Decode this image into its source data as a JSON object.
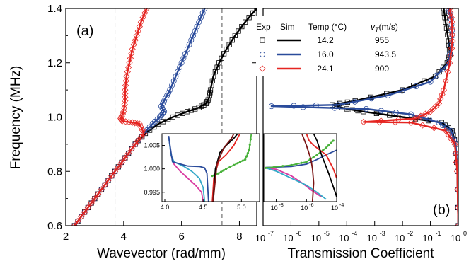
{
  "chart_data": [
    {
      "panel": "a",
      "type": "line",
      "panel_label": "(a)",
      "xlabel": "Wavevector (rad/mm)",
      "ylabel": "Frequency (MHz)",
      "xlim": [
        2,
        8.6
      ],
      "ylim": [
        0.6,
        1.4
      ],
      "xticks": [
        "2",
        "4",
        "6",
        "8"
      ],
      "yticks": [
        "0.6",
        "0.8",
        "1.0",
        "1.2",
        "1.4"
      ],
      "grid": false,
      "reference_lines_x": [
        3.7,
        7.4
      ],
      "series": [
        {
          "temp": "14.2",
          "color": "#000000",
          "marker": "square",
          "points": [
            [
              2.3,
              0.6
            ],
            [
              2.65,
              0.65
            ],
            [
              3.0,
              0.7
            ],
            [
              3.35,
              0.75
            ],
            [
              3.7,
              0.8
            ],
            [
              4.05,
              0.85
            ],
            [
              4.4,
              0.9
            ],
            [
              4.75,
              0.94
            ],
            [
              5.2,
              0.975
            ],
            [
              5.7,
              1.0
            ],
            [
              6.2,
              1.02
            ],
            [
              6.6,
              1.035
            ],
            [
              6.85,
              1.05
            ],
            [
              6.95,
              1.07
            ],
            [
              7.0,
              1.1
            ],
            [
              7.1,
              1.15
            ],
            [
              7.3,
              1.2
            ],
            [
              7.55,
              1.25
            ],
            [
              7.85,
              1.3
            ],
            [
              8.2,
              1.35
            ],
            [
              8.6,
              1.4
            ]
          ]
        },
        {
          "temp": "16.0",
          "color": "#2a4b9b",
          "marker": "circle",
          "points": [
            [
              2.3,
              0.6
            ],
            [
              2.65,
              0.65
            ],
            [
              3.0,
              0.7
            ],
            [
              3.35,
              0.75
            ],
            [
              3.7,
              0.8
            ],
            [
              4.05,
              0.85
            ],
            [
              4.4,
              0.9
            ],
            [
              4.7,
              0.94
            ],
            [
              5.0,
              0.975
            ],
            [
              5.25,
              1.0
            ],
            [
              5.4,
              1.02
            ],
            [
              5.3,
              1.04
            ],
            [
              5.45,
              1.07
            ],
            [
              5.6,
              1.1
            ],
            [
              5.8,
              1.15
            ],
            [
              6.0,
              1.2
            ],
            [
              6.2,
              1.25
            ],
            [
              6.4,
              1.3
            ],
            [
              6.6,
              1.35
            ],
            [
              6.8,
              1.4
            ]
          ]
        },
        {
          "temp": "24.1",
          "color": "#e52521",
          "marker": "diamond",
          "points": [
            [
              2.3,
              0.6
            ],
            [
              2.65,
              0.65
            ],
            [
              3.0,
              0.7
            ],
            [
              3.35,
              0.75
            ],
            [
              3.7,
              0.8
            ],
            [
              4.05,
              0.85
            ],
            [
              4.4,
              0.9
            ],
            [
              4.7,
              0.94
            ],
            [
              4.55,
              0.975
            ],
            [
              4.3,
              0.98
            ],
            [
              3.95,
              0.985
            ],
            [
              3.9,
              0.995
            ],
            [
              4.0,
              1.02
            ],
            [
              4.05,
              1.06
            ],
            [
              4.05,
              1.1
            ],
            [
              4.1,
              1.15
            ],
            [
              4.2,
              1.2
            ],
            [
              4.3,
              1.25
            ],
            [
              4.45,
              1.3
            ],
            [
              4.6,
              1.35
            ],
            [
              4.8,
              1.4
            ]
          ]
        }
      ],
      "inset": {
        "xlim": [
          4.0,
          5.2
        ],
        "ylim": [
          0.993,
          1.0075
        ],
        "xticks": [
          "4.0",
          "4.5",
          "5.0"
        ],
        "yticks": [
          "0.995",
          "1.000",
          "1.005"
        ],
        "series": [
          {
            "color": "#d93aa0",
            "points": [
              [
                4.05,
                1.007
              ],
              [
                4.08,
                1.003
              ],
              [
                4.12,
                1.001
              ],
              [
                4.2,
                0.9995
              ],
              [
                4.3,
                0.998
              ],
              [
                4.4,
                0.9965
              ],
              [
                4.48,
                0.995
              ],
              [
                4.5,
                0.993
              ]
            ]
          },
          {
            "color": "#34a8c8",
            "points": [
              [
                4.05,
                1.007
              ],
              [
                4.08,
                1.003
              ],
              [
                4.12,
                1.0015
              ],
              [
                4.25,
                1.0005
              ],
              [
                4.35,
                0.9995
              ],
              [
                4.45,
                0.998
              ],
              [
                4.5,
                0.996
              ],
              [
                4.52,
                0.993
              ]
            ]
          },
          {
            "color": "#2a4b9b",
            "points": [
              [
                4.05,
                1.007
              ],
              [
                4.1,
                1.0015
              ],
              [
                4.3,
                1.0006
              ],
              [
                4.45,
                1.0005
              ],
              [
                4.52,
                1.0002
              ],
              [
                4.55,
                0.999
              ],
              [
                4.57,
                0.993
              ]
            ]
          },
          {
            "color": "#e52521",
            "points": [
              [
                4.62,
                0.993
              ],
              [
                4.64,
                0.998
              ],
              [
                4.7,
                1.0015
              ],
              [
                4.8,
                1.003
              ],
              [
                4.9,
                1.005
              ],
              [
                4.98,
                1.0075
              ]
            ]
          },
          {
            "color": "#4ab23c",
            "points": [
              [
                4.62,
                0.9985
              ],
              [
                4.7,
                0.999
              ],
              [
                4.8,
                1.0
              ],
              [
                4.95,
                1.0012
              ],
              [
                5.05,
                1.002
              ],
              [
                5.1,
                1.004
              ],
              [
                5.13,
                1.0075
              ]
            ]
          },
          {
            "color": "#000000",
            "points": [
              [
                4.63,
                0.993
              ],
              [
                4.66,
                1.0
              ],
              [
                4.72,
                1.0035
              ],
              [
                4.8,
                1.005
              ],
              [
                4.9,
                1.0065
              ],
              [
                4.95,
                1.0075
              ]
            ]
          },
          {
            "color": "#7b1515",
            "points": [
              [
                4.63,
                0.993
              ],
              [
                4.68,
                1.001
              ],
              [
                4.77,
                1.0045
              ],
              [
                4.87,
                1.0065
              ],
              [
                4.9,
                1.0075
              ]
            ]
          }
        ]
      }
    },
    {
      "panel": "b",
      "type": "line",
      "panel_label": "(b)",
      "xlabel": "Transmission Coefficient",
      "xscale": "log",
      "xlim": [
        1e-07,
        1
      ],
      "ylim": [
        0.6,
        1.4
      ],
      "xticks": [
        {
          "base": "10",
          "exp": "-7"
        },
        {
          "base": "10",
          "exp": "-6"
        },
        {
          "base": "10",
          "exp": "-5"
        },
        {
          "base": "10",
          "exp": "-4"
        },
        {
          "base": "10",
          "exp": "-3"
        },
        {
          "base": "10",
          "exp": "-2"
        },
        {
          "base": "10",
          "exp": "-1"
        },
        {
          "base": "10",
          "exp": "0"
        }
      ],
      "series": [
        {
          "temp": "14.2",
          "color": "#000000",
          "marker": "square",
          "points": [
            [
              1,
              0.6
            ],
            [
              0.92,
              0.8
            ],
            [
              0.8,
              0.9
            ],
            [
              0.6,
              0.95
            ],
            [
              0.25,
              0.98
            ],
            [
              0.01,
              1.0
            ],
            [
              0.0004,
              1.02
            ],
            [
              0.0001,
              1.03
            ],
            [
              3e-05,
              1.045
            ],
            [
              0.0002,
              1.06
            ],
            [
              0.01,
              1.1
            ],
            [
              0.15,
              1.15
            ],
            [
              0.4,
              1.2
            ],
            [
              0.5,
              1.23
            ],
            [
              0.45,
              1.28
            ],
            [
              0.35,
              1.35
            ],
            [
              0.3,
              1.4
            ]
          ]
        },
        {
          "temp": "16.0",
          "color": "#2a4b9b",
          "marker": "circle",
          "points": [
            [
              1,
              0.6
            ],
            [
              0.93,
              0.8
            ],
            [
              0.8,
              0.9
            ],
            [
              0.55,
              0.95
            ],
            [
              0.2,
              0.98
            ],
            [
              0.02,
              1.01
            ],
            [
              0.0005,
              1.03
            ],
            [
              2e-07,
              1.04
            ],
            [
              5e-05,
              1.045
            ],
            [
              0.003,
              1.08
            ],
            [
              0.1,
              1.13
            ],
            [
              0.45,
              1.2
            ],
            [
              0.62,
              1.3
            ],
            [
              0.55,
              1.36
            ],
            [
              0.45,
              1.4
            ]
          ]
        },
        {
          "temp": "24.1",
          "color": "#e52521",
          "marker": "diamond",
          "points": [
            [
              1,
              0.6
            ],
            [
              0.92,
              0.8
            ],
            [
              0.75,
              0.9
            ],
            [
              0.35,
              0.95
            ],
            [
              0.02,
              0.98
            ],
            [
              0.0004,
              0.982
            ],
            [
              0.03,
              0.995
            ],
            [
              0.1,
              1.02
            ],
            [
              0.2,
              1.05
            ],
            [
              0.3,
              1.1
            ],
            [
              0.5,
              1.2
            ],
            [
              0.62,
              1.28
            ],
            [
              0.6,
              1.35
            ],
            [
              0.5,
              1.4
            ]
          ]
        }
      ],
      "inset": {
        "xscale": "log",
        "xlim": [
          1.5e-09,
          0.0001
        ],
        "xticks": [
          {
            "base": "10",
            "exp": "-8"
          },
          {
            "base": "10",
            "exp": "-6"
          },
          {
            "base": "10",
            "exp": "-4"
          }
        ],
        "series": [
          {
            "color": "#d93aa0",
            "points": [
              [
                2e-09,
                1.0002
              ],
              [
                1e-08,
                0.9999
              ],
              [
                1e-07,
                0.9985
              ],
              [
                5e-07,
                0.997
              ],
              [
                2e-06,
                0.9955
              ],
              [
                1e-05,
                0.994
              ]
            ]
          },
          {
            "color": "#34a8c8",
            "points": [
              [
                2e-09,
                1.0002
              ],
              [
                1e-08,
                0.9995
              ],
              [
                1e-07,
                0.998
              ],
              [
                1e-06,
                0.9965
              ],
              [
                5e-06,
                0.995
              ],
              [
                2e-05,
                0.9935
              ]
            ]
          },
          {
            "color": "#2a4b9b",
            "points": [
              [
                2e-09,
                1.0003
              ],
              [
                1e-07,
                1.0005
              ],
              [
                1e-06,
                1.001
              ],
              [
                5e-06,
                1.002
              ],
              [
                2e-05,
                1.003
              ],
              [
                0.0001,
                1.004
              ]
            ]
          },
          {
            "color": "#4ab23c",
            "points": [
              [
                2e-09,
                1.0002
              ],
              [
                1e-07,
                1.0008
              ],
              [
                1e-06,
                1.0015
              ],
              [
                5e-06,
                1.003
              ],
              [
                2e-05,
                1.0045
              ],
              [
                6e-05,
                1.006
              ]
            ]
          },
          {
            "color": "#e52521",
            "points": [
              [
                1e-06,
                1.0075
              ],
              [
                1.5e-06,
                1.006
              ],
              [
                3e-06,
                1.005
              ],
              [
                2e-05,
                1.003
              ],
              [
                6e-05,
                1.0
              ],
              [
                0.0001,
                0.998
              ]
            ]
          },
          {
            "color": "#7b1515",
            "points": [
              [
                5e-07,
                1.0075
              ],
              [
                1e-06,
                1.005
              ],
              [
                2e-06,
                1.002
              ],
              [
                2.5e-06,
                1.0
              ],
              [
                3e-06,
                0.997
              ],
              [
                2.5e-06,
                0.993
              ]
            ]
          },
          {
            "color": "#000000",
            "points": [
              [
                3e-06,
                1.0075
              ],
              [
                5e-06,
                1.006
              ],
              [
                1e-05,
                1.003
              ],
              [
                3e-05,
                0.999
              ],
              [
                8e-05,
                0.995
              ],
              [
                0.0001,
                0.994
              ]
            ]
          }
        ]
      }
    }
  ],
  "legend": {
    "headers": {
      "exp": "Exp",
      "sim": "Sim",
      "temp": "Temp (°C)",
      "vt_sym": "v",
      "vt_sub": "T",
      "vt_unit": "(m/s)"
    },
    "rows": [
      {
        "temp": "14.2",
        "vt": "955",
        "color": "#000000",
        "marker": "square"
      },
      {
        "temp": "16.0",
        "vt": "943.5",
        "color": "#2a4b9b",
        "marker": "circle"
      },
      {
        "temp": "24.1",
        "vt": "900",
        "color": "#e52521",
        "marker": "diamond"
      }
    ]
  }
}
